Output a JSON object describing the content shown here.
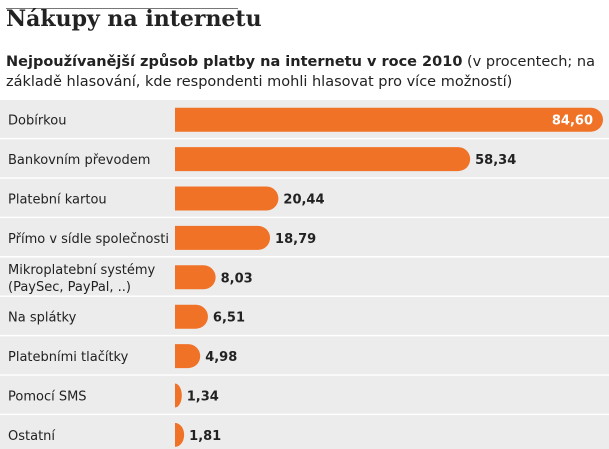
{
  "title": "Nákupy na internetu",
  "subtitle_bold": "Nejpoužívanější způsob platby na internetu v roce 2010",
  "subtitle_rest": " (v procentech; na základě hlasování, kde respondenti mohli hlasovat pro více možností)",
  "colors": {
    "bar": "#f07226",
    "row_bg": "#ececec",
    "separator": "#ffffff"
  },
  "chart_data": {
    "type": "bar",
    "orientation": "horizontal",
    "title": "Nejpoužívanější způsob platby na internetu v roce 2010",
    "unit": "v procentech",
    "categories": [
      [
        "Dobírkou"
      ],
      [
        "Bankovním převodem"
      ],
      [
        "Platební kartou"
      ],
      [
        "Přímo v sídle společnosti"
      ],
      [
        "Mikroplatební systémy",
        "(PaySec, PayPal, ..)"
      ],
      [
        "Na splátky"
      ],
      [
        "Platebními tlačítky"
      ],
      [
        "Pomocí SMS"
      ],
      [
        "Ostatní"
      ]
    ],
    "values": [
      84.6,
      58.34,
      20.44,
      18.79,
      8.03,
      6.51,
      4.98,
      1.34,
      1.81
    ],
    "value_labels": [
      "84,60",
      "58,34",
      "20,44",
      "18,79",
      "8,03",
      "6,51",
      "4,98",
      "1,34",
      "1,81"
    ],
    "xlim": [
      0,
      84.6
    ]
  }
}
